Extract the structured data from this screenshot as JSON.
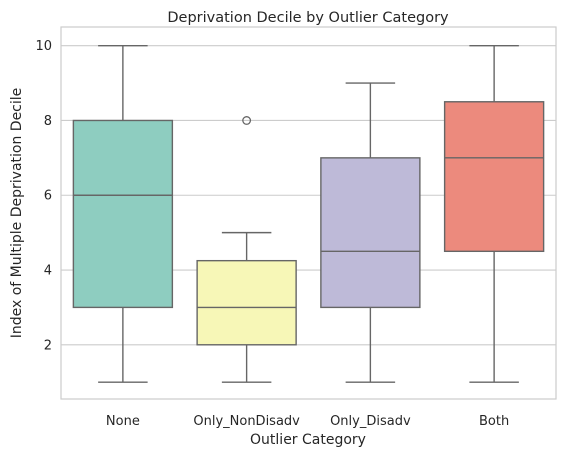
{
  "chart_data": {
    "type": "box",
    "title": "Deprivation Decile by Outlier Category",
    "xlabel": "Outlier Category",
    "ylabel": "Index of Multiple Deprivation Decile",
    "ylim": [
      0.55,
      10.5
    ],
    "yticks": [
      2,
      4,
      6,
      8,
      10
    ],
    "grid": "y",
    "categories": [
      "None",
      "Only_NonDisadv",
      "Only_Disadv",
      "Both"
    ],
    "boxes": [
      {
        "category": "None",
        "whisker_low": 1,
        "q1": 3,
        "median": 6,
        "q3": 8,
        "whisker_high": 10,
        "outliers": [],
        "color": "#8ecdc0"
      },
      {
        "category": "Only_NonDisadv",
        "whisker_low": 1,
        "q1": 2,
        "median": 3,
        "q3": 4.25,
        "whisker_high": 5,
        "outliers": [
          8
        ],
        "color": "#f7f7b7"
      },
      {
        "category": "Only_Disadv",
        "whisker_low": 1,
        "q1": 3,
        "median": 4.5,
        "q3": 7,
        "whisker_high": 9,
        "outliers": [],
        "color": "#bebad8"
      },
      {
        "category": "Both",
        "whisker_low": 1,
        "q1": 4.5,
        "median": 7,
        "q3": 8.5,
        "whisker_high": 10,
        "outliers": [],
        "color": "#ec8a7d"
      }
    ]
  }
}
